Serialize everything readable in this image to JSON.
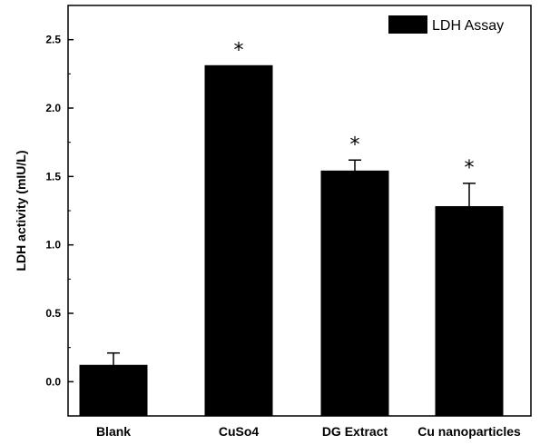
{
  "chart_data": {
    "type": "bar",
    "categories": [
      "Blank",
      "CuSo4",
      "DG Extract",
      "Cu nanoparticles"
    ],
    "series": [
      {
        "name": "LDH Assay",
        "values": [
          0.12,
          2.31,
          1.54,
          1.28
        ],
        "errors": [
          0.09,
          0.0,
          0.08,
          0.17
        ],
        "annotations": [
          "",
          "*",
          "*",
          "*"
        ],
        "color": "#000000"
      }
    ],
    "ylabel": "LDH activity (mIU/L)",
    "xlabel": "",
    "ylim": [
      -0.25,
      2.75
    ],
    "yticks": [
      "0.0",
      "0.5",
      "1.0",
      "1.5",
      "2.0",
      "2.5"
    ],
    "legend": "top-right",
    "grid": false
  }
}
